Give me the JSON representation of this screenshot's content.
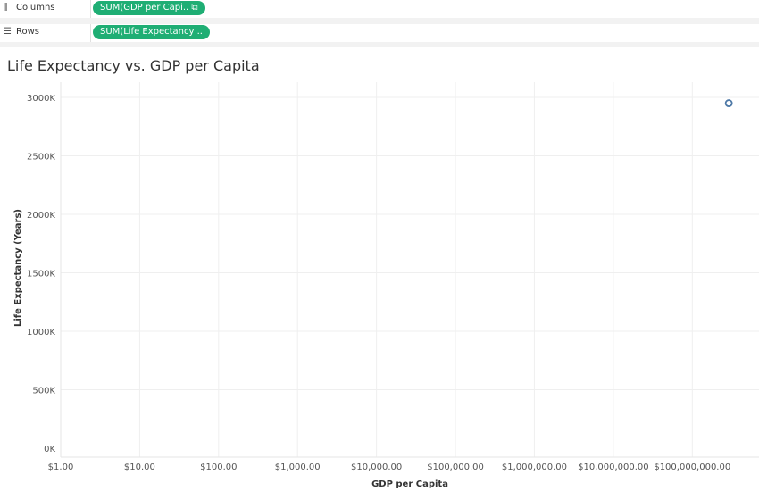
{
  "shelves": {
    "columns": {
      "label": "Columns",
      "icon": "columns-icon",
      "pill": "SUM(GDP per Capi.. ⧉"
    },
    "rows": {
      "label": "Rows",
      "icon": "rows-icon",
      "pill": "SUM(Life Expectancy .."
    }
  },
  "chart_data": {
    "type": "scatter",
    "title": "Life Expectancy vs. GDP per Capita",
    "xlabel": "GDP per Capita",
    "ylabel": "Life Expectancy (Years)",
    "xscale": "log",
    "xlim": [
      1,
      700000000
    ],
    "ylim": [
      0,
      3130000
    ],
    "xticks": [
      1,
      10,
      100,
      1000,
      10000,
      100000,
      1000000,
      10000000,
      100000000
    ],
    "xtick_labels": [
      "$1.00",
      "$10.00",
      "$100.00",
      "$1,000.00",
      "$10,000.00",
      "$100,000.00",
      "$1,000,000.00",
      "$10,000,000.00",
      "$100,000,000.00"
    ],
    "yticks": [
      0,
      500000,
      1000000,
      1500000,
      2000000,
      2500000,
      3000000
    ],
    "ytick_labels": [
      "0K",
      "500K",
      "1000K",
      "1500K",
      "2000K",
      "2500K",
      "3000K"
    ],
    "grid": true,
    "points": [
      {
        "x": 290000000,
        "y": 2950000
      }
    ],
    "marker_color": "#4e79a7"
  }
}
